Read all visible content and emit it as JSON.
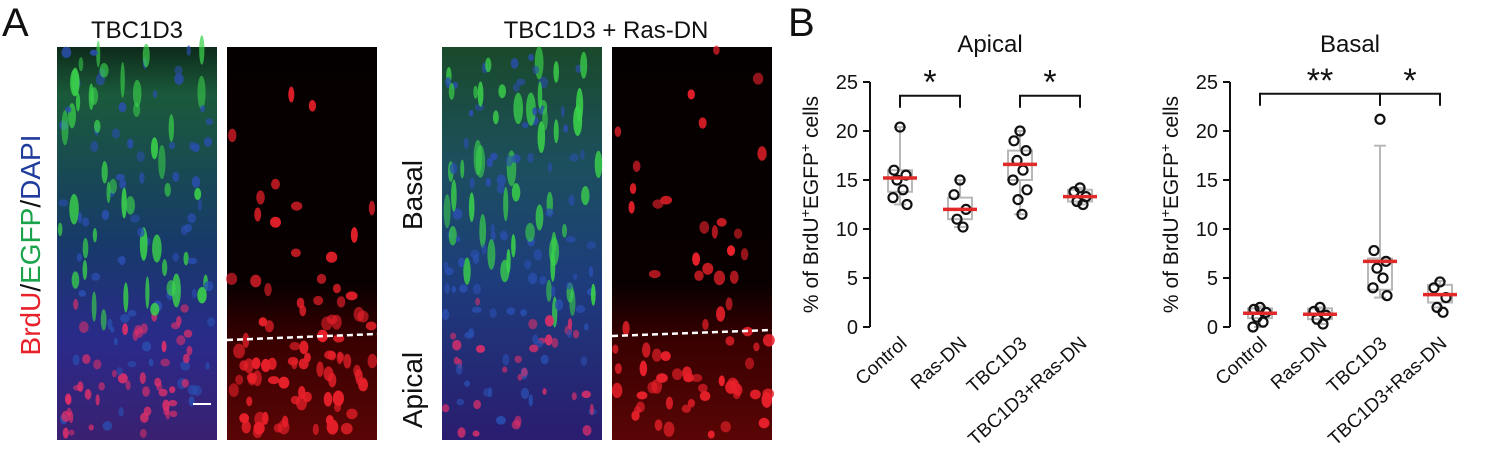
{
  "panel_a": {
    "label": "A",
    "titles": [
      "TBC1D3",
      "TBC1D3 + Ras-DN"
    ],
    "stain": [
      {
        "text": "BrdU",
        "color": "#e8202a"
      },
      {
        "text": "/",
        "color": "#111111"
      },
      {
        "text": "EGFP",
        "color": "#1aa34a"
      },
      {
        "text": "/",
        "color": "#111111"
      },
      {
        "text": "DAPI",
        "color": "#1f3b9c"
      }
    ],
    "regions": [
      "Basal",
      "Apical"
    ]
  },
  "panel_b": {
    "label": "B"
  },
  "chart_data": [
    {
      "type": "box",
      "title": "Apical",
      "ylabel": [
        {
          "text": "% of BrdU"
        },
        {
          "text": "+",
          "sup": true
        },
        {
          "text": "EGFP"
        },
        {
          "text": "+",
          "sup": true
        },
        {
          "text": " cells"
        }
      ],
      "categories": [
        "Control",
        "Ras-DN",
        "TBC1D3",
        "TBC1D3+Ras-DN"
      ],
      "boxes": [
        {
          "whisker_low": 12.5,
          "q1": 13.8,
          "median": 15.2,
          "q3": 16.0,
          "whisker_high": 20.4,
          "points": [
            20.4,
            16.0,
            15.5,
            15.0,
            14.0,
            13.2,
            12.5
          ]
        },
        {
          "whisker_low": 10.2,
          "q1": 11.0,
          "median": 12.0,
          "q3": 13.2,
          "whisker_high": 15.0,
          "points": [
            15.0,
            13.5,
            12.0,
            11.0,
            10.2
          ]
        },
        {
          "whisker_low": 11.5,
          "q1": 15.0,
          "median": 16.6,
          "q3": 18.0,
          "whisker_high": 20.0,
          "points": [
            20.0,
            19.0,
            18.0,
            17.0,
            16.0,
            15.0,
            14.0,
            13.0,
            11.5
          ]
        },
        {
          "whisker_low": 12.5,
          "q1": 12.8,
          "median": 13.3,
          "q3": 14.0,
          "whisker_high": 14.2,
          "points": [
            14.2,
            13.8,
            13.3,
            12.8,
            12.5
          ]
        }
      ],
      "significance": [
        {
          "from": 0,
          "to": 1,
          "level": 23.6,
          "label": "*"
        },
        {
          "from": 2,
          "to": 3,
          "level": 23.6,
          "label": "*"
        }
      ],
      "ylim": [
        0,
        25
      ],
      "yticks": [
        0,
        5,
        10,
        15,
        20,
        25
      ],
      "box_color": "#b8b8b8",
      "median_color": "#e02a2a",
      "point_color": "#111111"
    },
    {
      "type": "box",
      "title": "Basal",
      "ylabel": [
        {
          "text": "% of BrdU"
        },
        {
          "text": "+",
          "sup": true
        },
        {
          "text": "EGFP"
        },
        {
          "text": "+",
          "sup": true
        },
        {
          "text": " cells"
        }
      ],
      "categories": [
        "Control",
        "Ras-DN",
        "TBC1D3",
        "TBC1D3+Ras-DN"
      ],
      "boxes": [
        {
          "whisker_low": 0.0,
          "q1": 0.9,
          "median": 1.4,
          "q3": 1.9,
          "whisker_high": 2.1,
          "points": [
            2.0,
            1.8,
            1.5,
            1.0,
            0.5,
            0.0
          ]
        },
        {
          "whisker_low": 0.3,
          "q1": 0.8,
          "median": 1.3,
          "q3": 1.9,
          "whisker_high": 2.0,
          "points": [
            2.0,
            1.6,
            1.2,
            0.8,
            0.3
          ]
        },
        {
          "whisker_low": 3.0,
          "q1": 3.8,
          "median": 6.7,
          "q3": 7.0,
          "whisker_high": 18.5,
          "points": [
            21.2,
            7.8,
            6.7,
            6.0,
            5.0,
            4.0,
            3.2
          ]
        },
        {
          "whisker_low": 2.0,
          "q1": 2.5,
          "median": 3.3,
          "q3": 4.3,
          "whisker_high": 4.7,
          "points": [
            4.6,
            4.0,
            3.0,
            2.0,
            1.5
          ]
        }
      ],
      "significance": [
        {
          "from": 0,
          "to": 2,
          "level": 23.8,
          "label": "**"
        },
        {
          "from": 2,
          "to": 3,
          "level": 23.8,
          "label": "*"
        }
      ],
      "ylim": [
        0,
        25
      ],
      "yticks": [
        0,
        5,
        10,
        15,
        20,
        25
      ],
      "box_color": "#b8b8b8",
      "median_color": "#e02a2a",
      "point_color": "#111111"
    }
  ]
}
